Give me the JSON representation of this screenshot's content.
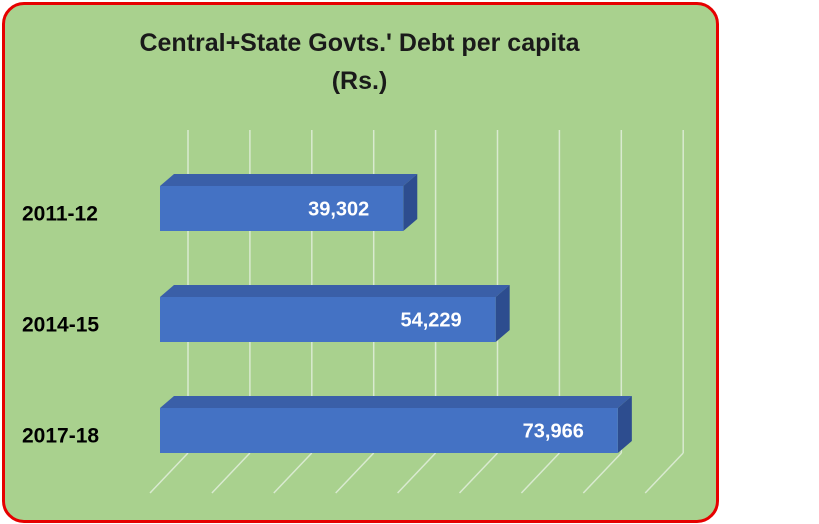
{
  "chart_data": {
    "type": "bar",
    "orientation": "horizontal",
    "style": "3d",
    "title_line1": "Central+State  Govts.' Debt per capita",
    "title_line2": "(Rs.)",
    "categories": [
      "2011-12",
      "2014-15",
      "2017-18"
    ],
    "values": [
      39302,
      54229,
      73966
    ],
    "value_labels": [
      "39,302",
      "54,229",
      "73,966"
    ],
    "xlim": [
      0,
      80000
    ],
    "grid": true,
    "legend": "none",
    "colors": {
      "bar_front": "#4472c4",
      "bar_top": "#3a5fa8",
      "bar_side": "#2d4d8f",
      "background": "#a9d18e",
      "border": "#e60000",
      "gridline": "#d9ead0"
    }
  }
}
